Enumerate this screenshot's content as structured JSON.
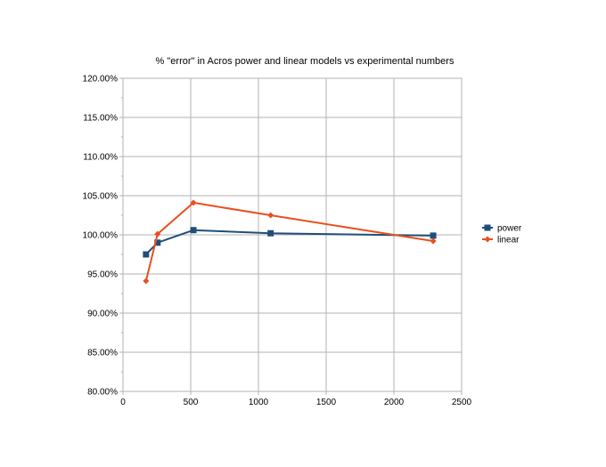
{
  "chart_data": {
    "type": "line",
    "title": "% \"error\" in Acros power and linear models vs experimental numbers",
    "xlabel": "",
    "ylabel": "",
    "xlim": [
      0,
      2500
    ],
    "ylim": [
      0.8,
      1.2
    ],
    "x_ticks": [
      "0",
      "500",
      "1000",
      "1500",
      "2000",
      "2500"
    ],
    "y_ticks": [
      "80.00%",
      "85.00%",
      "90.00%",
      "95.00%",
      "100.00%",
      "105.00%",
      "110.00%",
      "115.00%",
      "120.00%"
    ],
    "grid": true,
    "legend_position": "right",
    "series": [
      {
        "name": "power",
        "color": "#1f4e79",
        "marker": "square",
        "points": [
          [
            170,
            0.975
          ],
          [
            255,
            0.99
          ],
          [
            520,
            1.006
          ],
          [
            1090,
            1.002
          ],
          [
            2290,
            0.999
          ]
        ]
      },
      {
        "name": "linear",
        "color": "#e8501e",
        "marker": "diamond",
        "points": [
          [
            170,
            0.941
          ],
          [
            255,
            1.001
          ],
          [
            520,
            1.041
          ],
          [
            1090,
            1.025
          ],
          [
            2290,
            0.992
          ]
        ]
      }
    ]
  }
}
